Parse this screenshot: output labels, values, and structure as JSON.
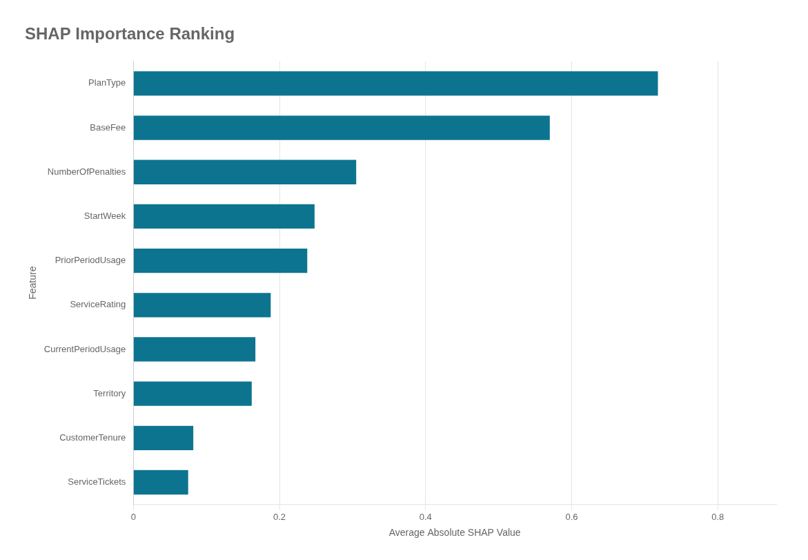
{
  "chart_data": {
    "type": "bar",
    "orientation": "horizontal",
    "title": "SHAP Importance Ranking",
    "xlabel": "Average Absolute SHAP Value",
    "ylabel": "Feature",
    "categories": [
      "ServiceTickets",
      "CustomerTenure",
      "Territory",
      "CurrentPeriodUsage",
      "ServiceRating",
      "PriorPeriodUsage",
      "StartWeek",
      "NumberOfPenalties",
      "BaseFee",
      "PlanType"
    ],
    "values": [
      0.075,
      0.082,
      0.162,
      0.167,
      0.188,
      0.238,
      0.248,
      0.305,
      0.57,
      0.718
    ],
    "color": "#0d7490",
    "xlim": [
      0,
      0.88
    ],
    "xticks": [
      0,
      0.2,
      0.4,
      0.6,
      0.8
    ],
    "grid": "x"
  }
}
